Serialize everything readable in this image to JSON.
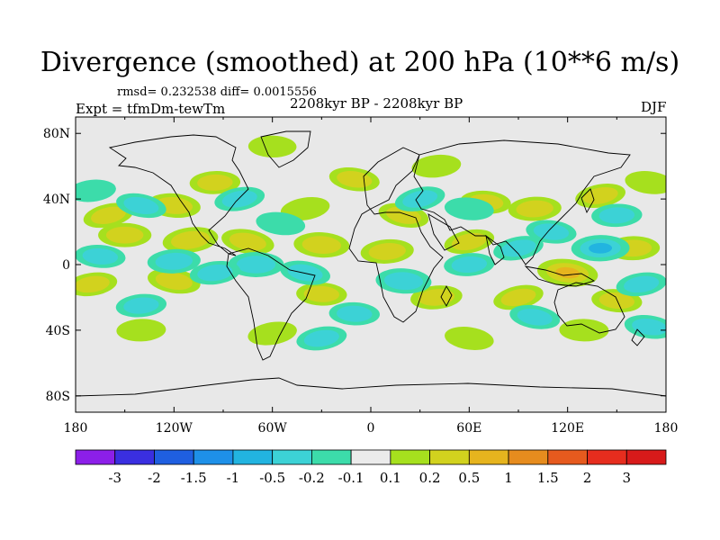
{
  "title": "Divergence (smoothed) at 200 hPa (10**6 m/s)",
  "stats": "rmsd= 0.232538  diff= 0.0015556",
  "experiment": "Expt = tfmDm-tewTm",
  "period": "2208kyr BP - 2208kyr BP",
  "season": "DJF",
  "axes": {
    "lon_ticks": [
      "180",
      "120W",
      "60W",
      "0",
      "60E",
      "120E",
      "180"
    ],
    "lat_ticks": [
      "80N",
      "40N",
      "0",
      "40S",
      "80S"
    ],
    "lon_range": [
      -180,
      180
    ],
    "lat_range": [
      -90,
      90
    ]
  },
  "colorbar": {
    "labels": [
      "-3",
      "-2",
      "-1.5",
      "-1",
      "-0.5",
      "-0.2",
      "-0.1",
      "0.1",
      "0.2",
      "0.5",
      "1",
      "1.5",
      "2",
      "3"
    ],
    "colors": [
      "#8c1fe8",
      "#3a2fe0",
      "#1f5fe0",
      "#1e90e8",
      "#22b4e0",
      "#3cd2d6",
      "#3cdcaa",
      "#ebebeb",
      "#a6e01e",
      "#d2d21e",
      "#e6b41e",
      "#e68c1e",
      "#e65a1e",
      "#e62d1e",
      "#d81a1a"
    ]
  },
  "chart_data": {
    "type": "heatmap",
    "title": "Divergence (smoothed) at 200 hPa (10**6 m/s)",
    "units": "10**6 m/s",
    "levels": [
      -3,
      -2,
      -1.5,
      -1,
      -0.5,
      -0.2,
      -0.1,
      0.1,
      0.2,
      0.5,
      1,
      1.5,
      2,
      3
    ],
    "background_color": "#e8e8e8",
    "blobs": [
      {
        "lon": -160,
        "lat": 30,
        "value": 0.3
      },
      {
        "lon": -120,
        "lat": 36,
        "value": 0.4
      },
      {
        "lon": -95,
        "lat": 50,
        "value": 0.3
      },
      {
        "lon": -40,
        "lat": 34,
        "value": 0.25
      },
      {
        "lon": -10,
        "lat": 52,
        "value": 0.3
      },
      {
        "lon": -60,
        "lat": 72,
        "value": 0.2
      },
      {
        "lon": 40,
        "lat": 60,
        "value": 0.25
      },
      {
        "lon": 20,
        "lat": 30,
        "value": 0.3
      },
      {
        "lon": 70,
        "lat": 38,
        "value": 0.3
      },
      {
        "lon": 100,
        "lat": 34,
        "value": 0.4
      },
      {
        "lon": 140,
        "lat": 42,
        "value": 0.3
      },
      {
        "lon": 170,
        "lat": 50,
        "value": 0.25
      },
      {
        "lon": -150,
        "lat": 18,
        "value": 0.4
      },
      {
        "lon": -110,
        "lat": 15,
        "value": 0.5
      },
      {
        "lon": -75,
        "lat": 14,
        "value": 0.4
      },
      {
        "lon": -30,
        "lat": 12,
        "value": 0.5
      },
      {
        "lon": 10,
        "lat": 8,
        "value": 0.4
      },
      {
        "lon": 60,
        "lat": 14,
        "value": 0.3
      },
      {
        "lon": 120,
        "lat": -5,
        "value": 0.7
      },
      {
        "lon": 160,
        "lat": 10,
        "value": 0.4
      },
      {
        "lon": -170,
        "lat": -12,
        "value": 0.3
      },
      {
        "lon": -120,
        "lat": -10,
        "value": 0.4
      },
      {
        "lon": -30,
        "lat": -18,
        "value": 0.3
      },
      {
        "lon": 40,
        "lat": -20,
        "value": 0.35
      },
      {
        "lon": 90,
        "lat": -20,
        "value": 0.3
      },
      {
        "lon": 150,
        "lat": -22,
        "value": 0.3
      },
      {
        "lon": -140,
        "lat": -40,
        "value": 0.25
      },
      {
        "lon": -60,
        "lat": -42,
        "value": 0.25
      },
      {
        "lon": 60,
        "lat": -45,
        "value": 0.25
      },
      {
        "lon": 130,
        "lat": -40,
        "value": 0.25
      },
      {
        "lon": -170,
        "lat": 45,
        "value": -0.2
      },
      {
        "lon": -140,
        "lat": 36,
        "value": -0.3
      },
      {
        "lon": -165,
        "lat": 5,
        "value": -0.3
      },
      {
        "lon": -120,
        "lat": 2,
        "value": -0.4
      },
      {
        "lon": -80,
        "lat": 40,
        "value": -0.3
      },
      {
        "lon": -55,
        "lat": 25,
        "value": -0.25
      },
      {
        "lon": -70,
        "lat": 0,
        "value": -0.5
      },
      {
        "lon": -95,
        "lat": -5,
        "value": -0.3
      },
      {
        "lon": -40,
        "lat": -5,
        "value": -0.3
      },
      {
        "lon": 20,
        "lat": -10,
        "value": -0.5
      },
      {
        "lon": 60,
        "lat": 0,
        "value": -0.3
      },
      {
        "lon": 90,
        "lat": 10,
        "value": -0.3
      },
      {
        "lon": 110,
        "lat": 20,
        "value": -0.3
      },
      {
        "lon": 140,
        "lat": 10,
        "value": -0.6
      },
      {
        "lon": 165,
        "lat": -12,
        "value": -0.3
      },
      {
        "lon": 100,
        "lat": -32,
        "value": -0.3
      },
      {
        "lon": -10,
        "lat": -30,
        "value": -0.3
      },
      {
        "lon": -140,
        "lat": -25,
        "value": -0.3
      },
      {
        "lon": 30,
        "lat": 40,
        "value": -0.3
      },
      {
        "lon": 60,
        "lat": 34,
        "value": -0.25
      },
      {
        "lon": 150,
        "lat": 30,
        "value": -0.3
      },
      {
        "lon": -30,
        "lat": -45,
        "value": -0.3
      },
      {
        "lon": 170,
        "lat": -38,
        "value": -0.3
      }
    ]
  }
}
